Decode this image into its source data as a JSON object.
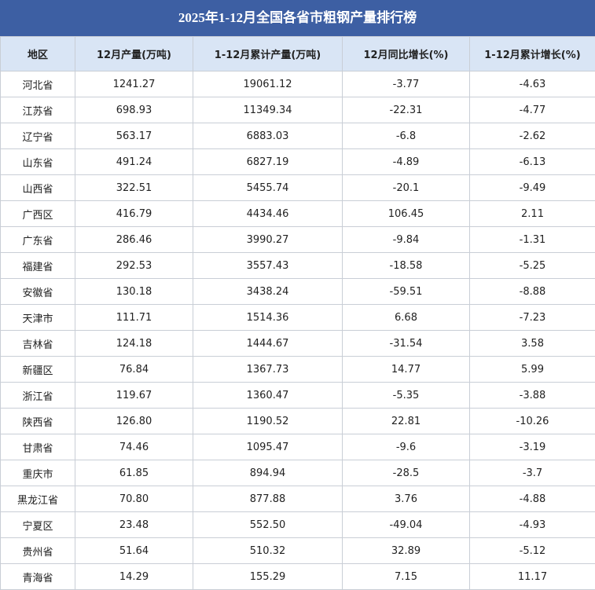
{
  "title": "2025年1-12月全国各省市粗钢产量排行榜",
  "table": {
    "header": [
      "地区",
      "12月产量(万吨)",
      "1-12月累计产量(万吨)",
      "12月同比增长(%)",
      "1-12月累计增长(%)"
    ],
    "rows": [
      [
        "河北省",
        "1241.27",
        "19061.12",
        "-3.77",
        "-4.63"
      ],
      [
        "江苏省",
        "698.93",
        "11349.34",
        "-22.31",
        "-4.77"
      ],
      [
        "辽宁省",
        "563.17",
        "6883.03",
        "-6.8",
        "-2.62"
      ],
      [
        "山东省",
        "491.24",
        "6827.19",
        "-4.89",
        "-6.13"
      ],
      [
        "山西省",
        "322.51",
        "5455.74",
        "-20.1",
        "-9.49"
      ],
      [
        "广西区",
        "416.79",
        "4434.46",
        "106.45",
        "2.11"
      ],
      [
        "广东省",
        "286.46",
        "3990.27",
        "-9.84",
        "-1.31"
      ],
      [
        "福建省",
        "292.53",
        "3557.43",
        "-18.58",
        "-5.25"
      ],
      [
        "安徽省",
        "130.18",
        "3438.24",
        "-59.51",
        "-8.88"
      ],
      [
        "天津市",
        "111.71",
        "1514.36",
        "6.68",
        "-7.23"
      ],
      [
        "吉林省",
        "124.18",
        "1444.67",
        "-31.54",
        "3.58"
      ],
      [
        "新疆区",
        "76.84",
        "1367.73",
        "14.77",
        "5.99"
      ],
      [
        "浙江省",
        "119.67",
        "1360.47",
        "-5.35",
        "-3.88"
      ],
      [
        "陕西省",
        "126.80",
        "1190.52",
        "22.81",
        "-10.26"
      ],
      [
        "甘肃省",
        "74.46",
        "1095.47",
        "-9.6",
        "-3.19"
      ],
      [
        "重庆市",
        "61.85",
        "894.94",
        "-28.5",
        "-3.7"
      ],
      [
        "黑龙江省",
        "70.80",
        "877.88",
        "3.76",
        "-4.88"
      ],
      [
        "宁夏区",
        "23.48",
        "552.50",
        "-49.04",
        "-4.93"
      ],
      [
        "贵州省",
        "51.64",
        "510.32",
        "32.89",
        "-5.12"
      ],
      [
        "青海省",
        "14.29",
        "155.29",
        "7.15",
        "11.17"
      ]
    ]
  }
}
